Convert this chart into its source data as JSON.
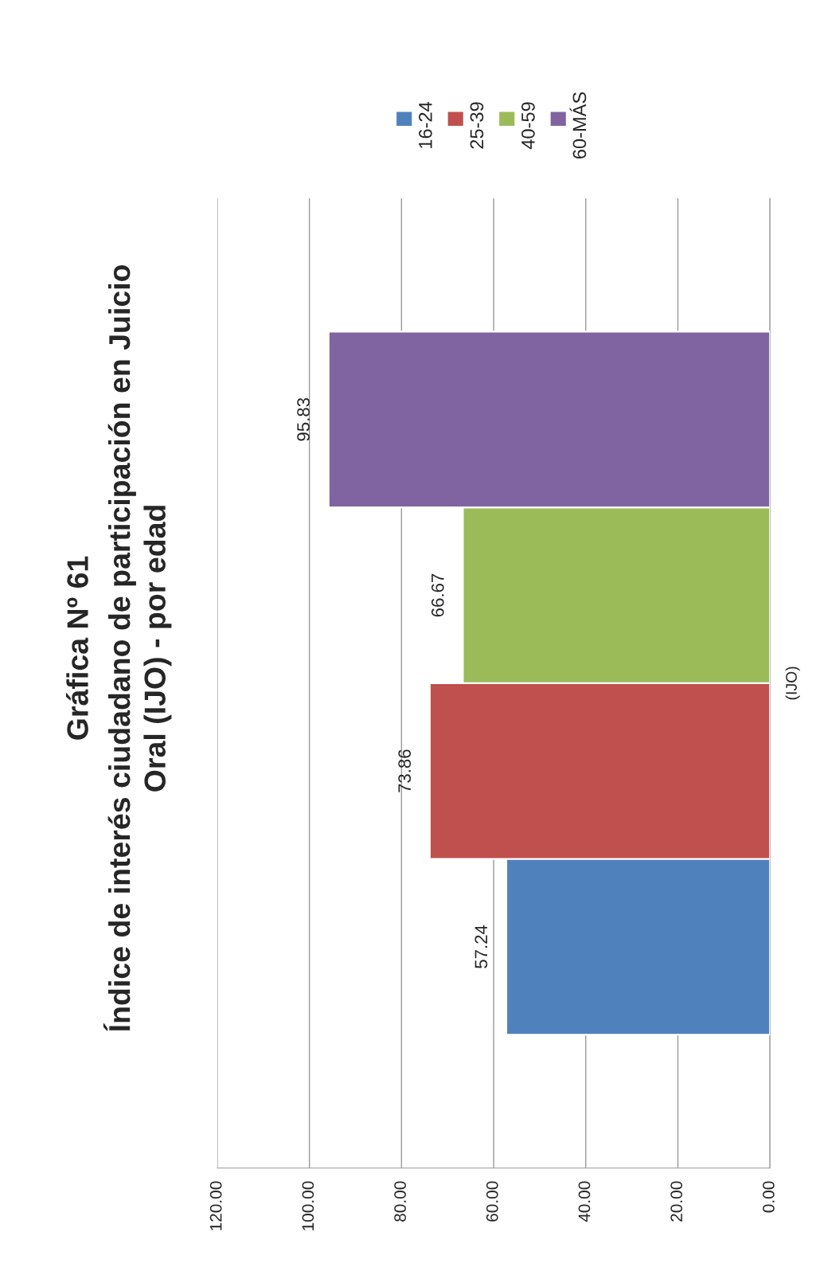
{
  "chart_data": {
    "type": "bar",
    "orientation": "horizontal",
    "title": "Gráfica Nº 61\nÍndice de interés ciudadano de participación en Juicio\nOral (IJO) - por edad",
    "categories": [
      "(IJO)"
    ],
    "series": [
      {
        "name": "16-24",
        "color": "#4f81bd",
        "values": [
          57.24
        ]
      },
      {
        "name": "25-39",
        "color": "#c0504d",
        "values": [
          73.86
        ]
      },
      {
        "name": "40-59",
        "color": "#9bbb59",
        "values": [
          66.67
        ]
      },
      {
        "name": "60-MÁS",
        "color": "#8064a2",
        "values": [
          95.83
        ]
      }
    ],
    "xlim": [
      120,
      0
    ],
    "xticks": [
      {
        "value": 120,
        "label": "120.00"
      },
      {
        "value": 100,
        "label": "100.00"
      },
      {
        "value": 80,
        "label": "80.00"
      },
      {
        "value": 60,
        "label": "60.00"
      },
      {
        "value": 40,
        "label": "40.00"
      },
      {
        "value": 20,
        "label": "20.00"
      },
      {
        "value": 0,
        "label": "0.00"
      }
    ],
    "grid": "x",
    "legend": "top right",
    "data_labels": true
  }
}
